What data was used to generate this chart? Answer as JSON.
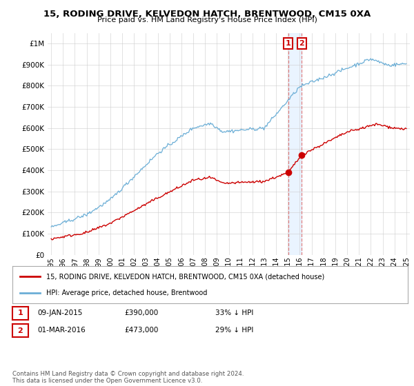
{
  "title": "15, RODING DRIVE, KELVEDON HATCH, BRENTWOOD, CM15 0XA",
  "subtitle": "Price paid vs. HM Land Registry's House Price Index (HPI)",
  "legend_line1": "15, RODING DRIVE, KELVEDON HATCH, BRENTWOOD, CM15 0XA (detached house)",
  "legend_line2": "HPI: Average price, detached house, Brentwood",
  "sale1_date": "09-JAN-2015",
  "sale1_price": 390000,
  "sale1_label": "33% ↓ HPI",
  "sale2_date": "01-MAR-2016",
  "sale2_price": 473000,
  "sale2_label": "29% ↓ HPI",
  "sale1_x": 2015.03,
  "sale2_x": 2016.17,
  "hpi_color": "#6baed6",
  "price_color": "#cc0000",
  "annotation_color": "#cc0000",
  "footer": "Contains HM Land Registry data © Crown copyright and database right 2024.\nThis data is licensed under the Open Government Licence v3.0.",
  "ylim": [
    0,
    1050000
  ],
  "xlim": [
    1994.7,
    2025.3
  ]
}
